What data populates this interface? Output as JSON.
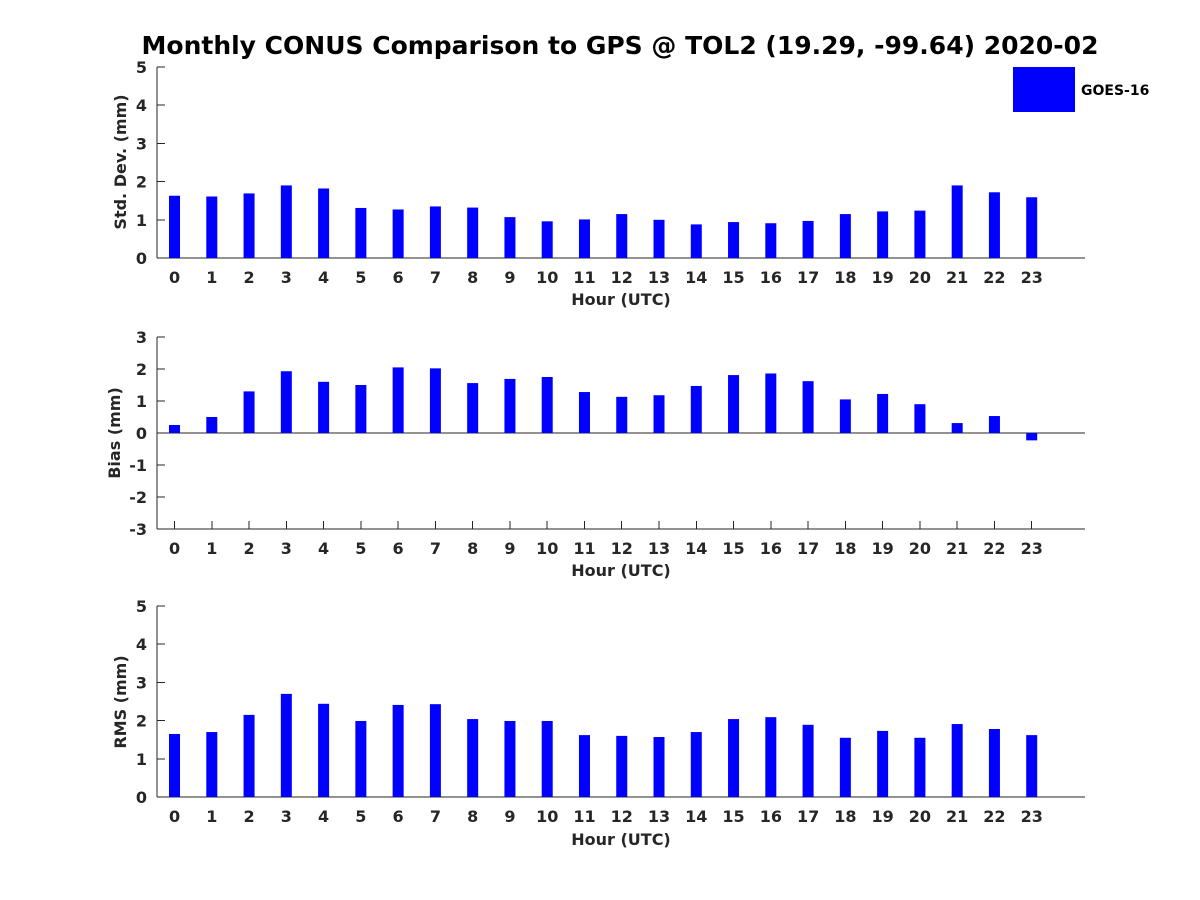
{
  "title": "Monthly CONUS Comparison to GPS @ TOL2 (19.29, -99.64) 2020-02",
  "legend": {
    "label": "GOES-16",
    "color": "#0000ff"
  },
  "chart_data": [
    {
      "type": "bar",
      "name": "std",
      "title": "",
      "xlabel": "Hour (UTC)",
      "ylabel": "Std. Dev. (mm)",
      "ylim": [
        0,
        5
      ],
      "yticks": [
        "0",
        "1",
        "2",
        "3",
        "4",
        "5"
      ],
      "categories": [
        "0",
        "1",
        "2",
        "3",
        "4",
        "5",
        "6",
        "7",
        "8",
        "9",
        "10",
        "11",
        "12",
        "13",
        "14",
        "15",
        "16",
        "17",
        "18",
        "19",
        "20",
        "21",
        "22",
        "23"
      ],
      "series": [
        {
          "name": "GOES-16",
          "color": "#0000ff",
          "values": [
            1.63,
            1.61,
            1.69,
            1.9,
            1.82,
            1.31,
            1.27,
            1.35,
            1.32,
            1.07,
            0.96,
            1.01,
            1.15,
            1.0,
            0.88,
            0.94,
            0.91,
            0.97,
            1.15,
            1.22,
            1.24,
            1.9,
            1.72,
            1.59
          ]
        }
      ]
    },
    {
      "type": "bar",
      "name": "bias",
      "title": "",
      "xlabel": "Hour (UTC)",
      "ylabel": "Bias (mm)",
      "ylim": [
        -3,
        3
      ],
      "yticks": [
        "-3",
        "-2",
        "-1",
        "0",
        "1",
        "2",
        "3"
      ],
      "categories": [
        "0",
        "1",
        "2",
        "3",
        "4",
        "5",
        "6",
        "7",
        "8",
        "9",
        "10",
        "11",
        "12",
        "13",
        "14",
        "15",
        "16",
        "17",
        "18",
        "19",
        "20",
        "21",
        "22",
        "23"
      ],
      "series": [
        {
          "name": "GOES-16",
          "color": "#0000ff",
          "values": [
            0.25,
            0.5,
            1.3,
            1.93,
            1.6,
            1.5,
            2.05,
            2.02,
            1.56,
            1.69,
            1.75,
            1.28,
            1.13,
            1.18,
            1.47,
            1.81,
            1.86,
            1.62,
            1.05,
            1.22,
            0.9,
            0.31,
            0.53,
            -0.23
          ]
        }
      ]
    },
    {
      "type": "bar",
      "name": "rms",
      "title": "",
      "xlabel": "Hour (UTC)",
      "ylabel": "RMS (mm)",
      "ylim": [
        0,
        5
      ],
      "yticks": [
        "0",
        "1",
        "2",
        "3",
        "4",
        "5"
      ],
      "categories": [
        "0",
        "1",
        "2",
        "3",
        "4",
        "5",
        "6",
        "7",
        "8",
        "9",
        "10",
        "11",
        "12",
        "13",
        "14",
        "15",
        "16",
        "17",
        "18",
        "19",
        "20",
        "21",
        "22",
        "23"
      ],
      "series": [
        {
          "name": "GOES-16",
          "color": "#0000ff",
          "values": [
            1.65,
            1.7,
            2.15,
            2.7,
            2.44,
            1.99,
            2.41,
            2.43,
            2.04,
            1.99,
            1.99,
            1.62,
            1.6,
            1.57,
            1.7,
            2.04,
            2.09,
            1.89,
            1.55,
            1.73,
            1.55,
            1.91,
            1.78,
            1.62
          ]
        }
      ]
    }
  ]
}
